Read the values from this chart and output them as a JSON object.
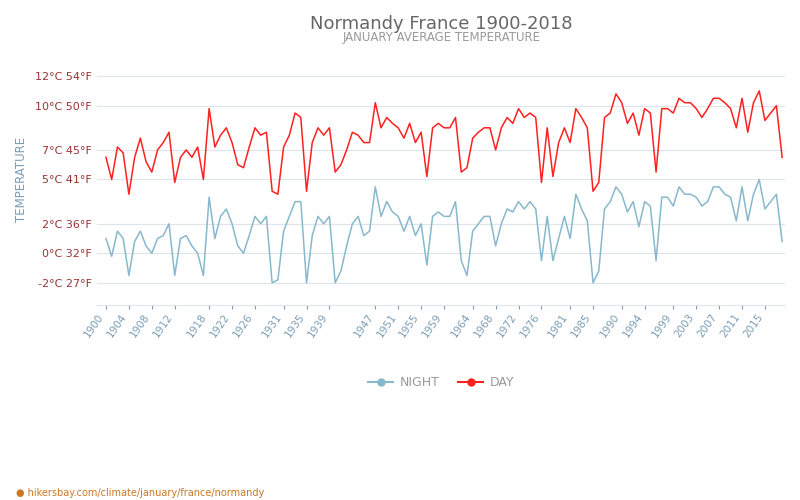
{
  "title": "Normandy France 1900-2018",
  "subtitle": "JANUARY AVERAGE TEMPERATURE",
  "ylabel": "TEMPERATURE",
  "xlabel_url": "hikersbay.com/climate/january/france/normandy",
  "yticks_left": [
    "-2°C 27°F",
    "0°C 32°F",
    "2°C 36°F",
    "5°C 41°F",
    "7°C 45°F",
    "10°C 50°F",
    "12°C 54°F"
  ],
  "yticks_values": [
    -2,
    0,
    2,
    5,
    7,
    10,
    12
  ],
  "ylim": [
    -3.5,
    13.5
  ],
  "xtick_labels": [
    "1900",
    "1904",
    "1908",
    "1912",
    "1918",
    "1922",
    "1926",
    "1931",
    "1935",
    "1939",
    "1947",
    "1951",
    "1955",
    "1959",
    "1964",
    "1968",
    "1972",
    "1976",
    "1981",
    "1985",
    "1990",
    "1994",
    "1999",
    "2003",
    "2007",
    "2011",
    "2015"
  ],
  "title_color": "#666666",
  "subtitle_color": "#999999",
  "ylabel_color": "#7a9db5",
  "ytick_color": "#993333",
  "xtick_color": "#7a9db5",
  "grid_color": "#dde5ec",
  "day_color": "#ff2020",
  "night_color": "#88b8cc",
  "bg_color": "#ffffff",
  "legend_night": "NIGHT",
  "legend_day": "DAY",
  "years": [
    1900,
    1901,
    1902,
    1903,
    1904,
    1905,
    1906,
    1907,
    1908,
    1909,
    1910,
    1911,
    1912,
    1913,
    1914,
    1915,
    1916,
    1917,
    1918,
    1919,
    1920,
    1921,
    1922,
    1923,
    1924,
    1925,
    1926,
    1927,
    1928,
    1929,
    1930,
    1931,
    1932,
    1933,
    1934,
    1935,
    1936,
    1937,
    1938,
    1939,
    1940,
    1941,
    1942,
    1943,
    1944,
    1945,
    1946,
    1947,
    1948,
    1949,
    1950,
    1951,
    1952,
    1953,
    1954,
    1955,
    1956,
    1957,
    1958,
    1959,
    1960,
    1961,
    1962,
    1963,
    1964,
    1965,
    1966,
    1967,
    1968,
    1969,
    1970,
    1971,
    1972,
    1973,
    1974,
    1975,
    1976,
    1977,
    1978,
    1979,
    1980,
    1981,
    1982,
    1983,
    1984,
    1985,
    1986,
    1987,
    1988,
    1989,
    1990,
    1991,
    1992,
    1993,
    1994,
    1995,
    1996,
    1997,
    1998,
    1999,
    2000,
    2001,
    2002,
    2003,
    2004,
    2005,
    2006,
    2007,
    2008,
    2009,
    2010,
    2011,
    2012,
    2013,
    2014,
    2015,
    2016,
    2017,
    2018
  ],
  "day_temps": [
    6.5,
    5.0,
    7.2,
    6.8,
    4.0,
    6.5,
    7.8,
    6.2,
    5.5,
    7.0,
    7.5,
    8.2,
    4.8,
    6.5,
    7.0,
    6.5,
    7.2,
    5.0,
    9.8,
    7.2,
    8.0,
    8.5,
    7.5,
    6.0,
    5.8,
    7.2,
    8.5,
    8.0,
    8.2,
    4.2,
    4.0,
    7.2,
    8.0,
    9.5,
    9.2,
    4.2,
    7.5,
    8.5,
    8.0,
    8.5,
    5.5,
    6.0,
    7.0,
    8.2,
    8.0,
    7.5,
    7.5,
    10.2,
    8.5,
    9.2,
    8.8,
    8.5,
    7.8,
    8.8,
    7.5,
    8.2,
    5.2,
    8.5,
    8.8,
    8.5,
    8.5,
    9.2,
    5.5,
    5.8,
    7.8,
    8.2,
    8.5,
    8.5,
    7.0,
    8.5,
    9.2,
    8.8,
    9.8,
    9.2,
    9.5,
    9.2,
    4.8,
    8.5,
    5.2,
    7.5,
    8.5,
    7.5,
    9.8,
    9.2,
    8.5,
    4.2,
    4.8,
    9.2,
    9.5,
    10.8,
    10.2,
    8.8,
    9.5,
    8.0,
    9.8,
    9.5,
    5.5,
    9.8,
    9.8,
    9.5,
    10.5,
    10.2,
    10.2,
    9.8,
    9.2,
    9.8,
    10.5,
    10.5,
    10.2,
    9.8,
    8.5,
    10.5,
    8.2,
    10.2,
    11.0,
    9.0,
    9.5,
    10.0,
    6.5
  ],
  "night_temps": [
    1.0,
    -0.2,
    1.5,
    1.0,
    -1.5,
    0.8,
    1.5,
    0.5,
    0.0,
    1.0,
    1.2,
    2.0,
    -1.5,
    1.0,
    1.2,
    0.5,
    0.0,
    -1.5,
    3.8,
    1.0,
    2.5,
    3.0,
    2.0,
    0.5,
    0.0,
    1.2,
    2.5,
    2.0,
    2.5,
    -2.0,
    -1.8,
    1.5,
    2.5,
    3.5,
    3.5,
    -2.0,
    1.2,
    2.5,
    2.0,
    2.5,
    -2.0,
    -1.2,
    0.5,
    2.0,
    2.5,
    1.2,
    1.5,
    4.5,
    2.5,
    3.5,
    2.8,
    2.5,
    1.5,
    2.5,
    1.2,
    2.0,
    -0.8,
    2.5,
    2.8,
    2.5,
    2.5,
    3.5,
    -0.5,
    -1.5,
    1.5,
    2.0,
    2.5,
    2.5,
    0.5,
    2.0,
    3.0,
    2.8,
    3.5,
    3.0,
    3.5,
    3.0,
    -0.5,
    2.5,
    -0.5,
    1.0,
    2.5,
    1.0,
    4.0,
    3.0,
    2.2,
    -2.0,
    -1.2,
    3.0,
    3.5,
    4.5,
    4.0,
    2.8,
    3.5,
    1.8,
    3.5,
    3.2,
    -0.5,
    3.8,
    3.8,
    3.2,
    4.5,
    4.0,
    4.0,
    3.8,
    3.2,
    3.5,
    4.5,
    4.5,
    4.0,
    3.8,
    2.2,
    4.5,
    2.2,
    4.0,
    5.0,
    3.0,
    3.5,
    4.0,
    0.8
  ]
}
